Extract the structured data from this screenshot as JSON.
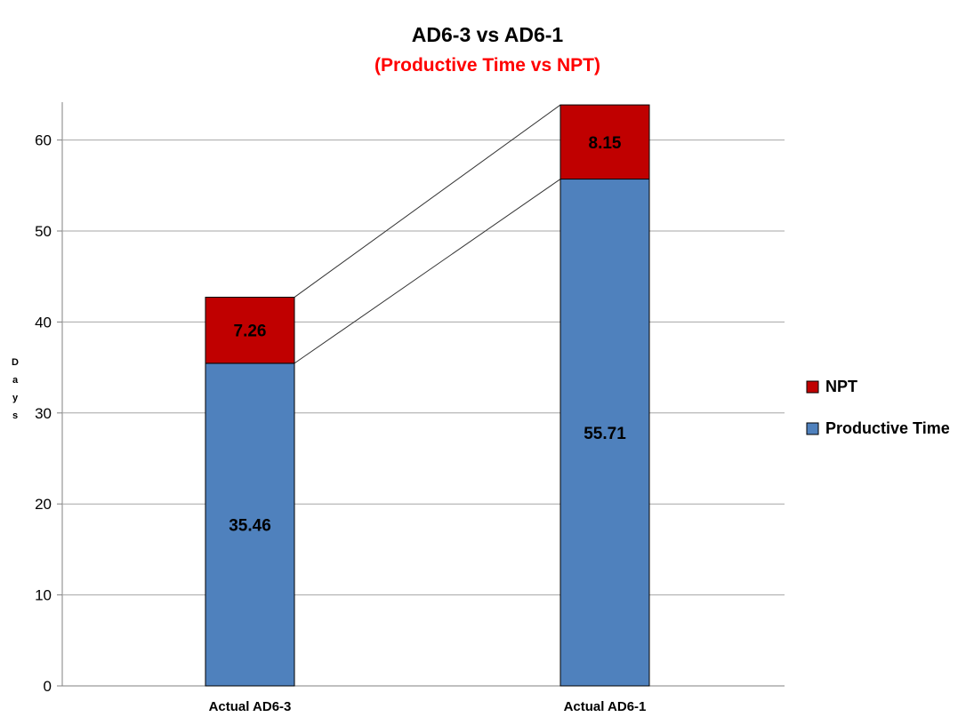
{
  "chart_data": {
    "type": "bar",
    "stacked": true,
    "title": "AD6-3 vs AD6-1",
    "subtitle": "(Productive Time vs NPT)",
    "ylabel": "Days",
    "xlabel": "",
    "categories": [
      "Actual AD6-3",
      "Actual AD6-1"
    ],
    "series": [
      {
        "name": "Productive Time",
        "values": [
          35.46,
          55.71
        ],
        "labels": [
          "35.46",
          "55.71"
        ],
        "color": "#4f81bd"
      },
      {
        "name": "NPT",
        "values": [
          7.26,
          8.15
        ],
        "labels": [
          "7.26",
          "8.15"
        ],
        "color": "#c00000"
      }
    ],
    "legend_order": [
      "NPT",
      "Productive Time"
    ],
    "ylim": [
      0,
      64
    ],
    "yticks": [
      0,
      10,
      20,
      30,
      40,
      50,
      60
    ],
    "grid": true,
    "legend_position": "right",
    "series_lines": true,
    "subtitle_color": "#ff0000"
  }
}
